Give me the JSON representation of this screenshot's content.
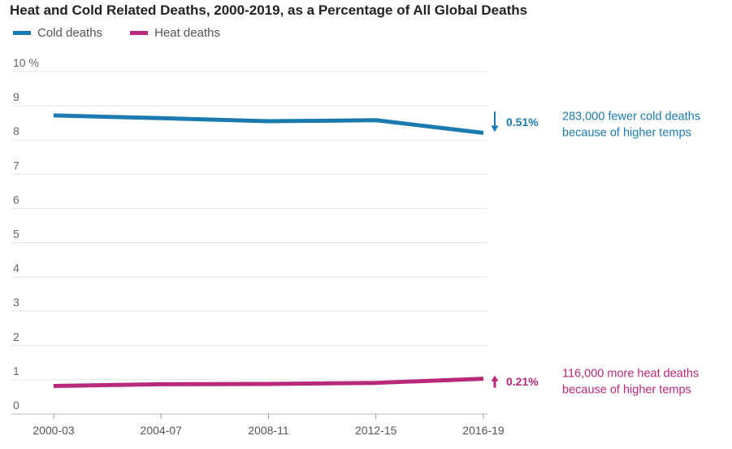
{
  "chart_data": {
    "type": "line",
    "title": "Heat and Cold Related Deaths, 2000-2019, as a Percentage of All Global Deaths",
    "categories": [
      "2000-03",
      "2004-07",
      "2008-11",
      "2012-15",
      "2016-19"
    ],
    "y_ticks": [
      "0",
      "1",
      "2",
      "3",
      "4",
      "5",
      "6",
      "7",
      "8",
      "9",
      "10 %"
    ],
    "ylim": [
      0,
      10
    ],
    "grid": true,
    "legend_position": "top-left",
    "series": [
      {
        "name": "Cold deaths",
        "color": "#1b7bb0",
        "values": [
          8.72,
          8.64,
          8.55,
          8.58,
          8.21
        ]
      },
      {
        "name": "Heat deaths",
        "color": "#b8287b",
        "values": [
          0.82,
          0.87,
          0.88,
          0.91,
          1.03
        ]
      }
    ],
    "annotations": [
      {
        "series": "Cold deaths",
        "direction": "down",
        "change": "0.51%",
        "note_lines": [
          "283,000 fewer cold deaths",
          "because of higher temps"
        ]
      },
      {
        "series": "Heat deaths",
        "direction": "up",
        "change": "0.21%",
        "note_lines": [
          "116,000 more heat deaths",
          "because of higher temps"
        ]
      }
    ]
  }
}
